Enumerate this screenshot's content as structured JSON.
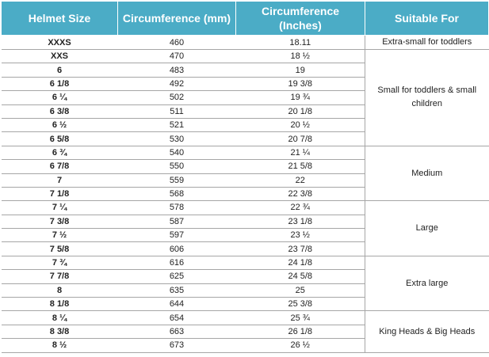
{
  "table": {
    "header": [
      "Helmet Size",
      "Circumference (mm)",
      "Circumference (Inches)",
      "Suitable For"
    ],
    "rows": [
      [
        "XXXS",
        "460",
        "18.11"
      ],
      [
        "XXS",
        "470",
        "18 ½"
      ],
      [
        "6",
        "483",
        "19"
      ],
      [
        "6 1/8",
        "492",
        "19 3/8"
      ],
      [
        "6 ¼",
        "502",
        "19 ¾"
      ],
      [
        "6 3/8",
        "511",
        "20 1/8"
      ],
      [
        "6 ½",
        "521",
        "20 ½"
      ],
      [
        "6 5/8",
        "530",
        "20 7/8"
      ],
      [
        "6 ¾",
        "540",
        "21 ¼"
      ],
      [
        "6 7/8",
        "550",
        "21 5/8"
      ],
      [
        "7",
        "559",
        "22"
      ],
      [
        "7 1/8",
        "568",
        "22 3/8"
      ],
      [
        "7 ¼",
        "578",
        "22 ¾"
      ],
      [
        "7 3/8",
        "587",
        "23 1/8"
      ],
      [
        "7 ½",
        "597",
        "23 ½"
      ],
      [
        "7 5/8",
        "606",
        "23 7/8"
      ],
      [
        "7 ¾",
        "616",
        "24 1/8"
      ],
      [
        "7 7/8",
        "625",
        "24 5/8"
      ],
      [
        "8",
        "635",
        "25"
      ],
      [
        "8 1/8",
        "644",
        "25 3/8"
      ],
      [
        "8 ¼",
        "654",
        "25 ¾"
      ],
      [
        "8 3/8",
        "663",
        "26 1/8"
      ],
      [
        "8 ½",
        "673",
        "26 ½"
      ]
    ],
    "groups": [
      "Extra-small for toddlers",
      "Small for toddlers & small children",
      "Medium",
      "Large",
      "Extra large",
      "King Heads & Big Heads"
    ]
  }
}
